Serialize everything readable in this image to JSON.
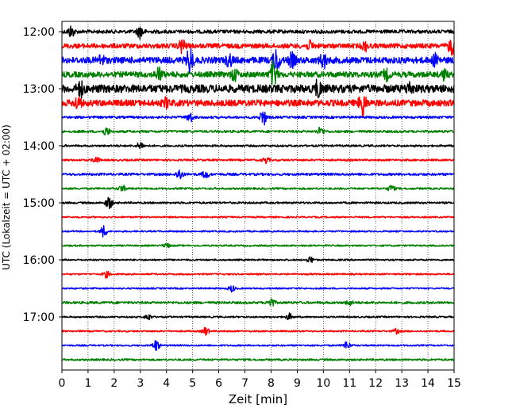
{
  "chart_data": {
    "type": "line",
    "xlabel": "Zeit  [min]",
    "ylabel": "UTC (Lokalzeit = UTC + 02:00)",
    "xlim": [
      0,
      15
    ],
    "x_ticks": [
      "0",
      "1",
      "2",
      "3",
      "4",
      "5",
      "6",
      "7",
      "8",
      "9",
      "10",
      "11",
      "12",
      "13",
      "14",
      "15"
    ],
    "y_ticks": [
      "12:00",
      "13:00",
      "14:00",
      "15:00",
      "16:00",
      "17:00"
    ],
    "grid": "vertical dotted at each minute",
    "series_colors": [
      "#000000",
      "#ff0000",
      "#0000ff",
      "#008000"
    ],
    "traces": [
      {
        "start": "12:00",
        "color": "#000000",
        "amp": 2.2,
        "events": [
          [
            0.35,
            7
          ],
          [
            3.0,
            8
          ]
        ]
      },
      {
        "start": "12:15",
        "color": "#ff0000",
        "amp": 3.0,
        "events": [
          [
            4.6,
            9
          ],
          [
            9.5,
            5
          ],
          [
            11.6,
            5
          ],
          [
            14.9,
            10
          ]
        ]
      },
      {
        "start": "12:30",
        "color": "#0000ff",
        "amp": 4.0,
        "events": [
          [
            1.5,
            6
          ],
          [
            4.9,
            15
          ],
          [
            6.4,
            7
          ],
          [
            8.2,
            14
          ],
          [
            8.8,
            8
          ],
          [
            10.0,
            9
          ],
          [
            14.3,
            7
          ]
        ]
      },
      {
        "start": "12:45",
        "color": "#008000",
        "amp": 3.5,
        "events": [
          [
            3.7,
            8
          ],
          [
            6.6,
            7
          ],
          [
            8.1,
            16
          ],
          [
            12.4,
            6
          ],
          [
            14.6,
            6
          ]
        ]
      },
      {
        "start": "13:00",
        "color": "#000000",
        "amp": 5.0,
        "events": [
          [
            0.7,
            8
          ],
          [
            9.8,
            10
          ],
          [
            13.3,
            6
          ]
        ]
      },
      {
        "start": "13:15",
        "color": "#ff0000",
        "amp": 4.0,
        "events": [
          [
            0.6,
            7
          ],
          [
            4.0,
            5
          ],
          [
            11.5,
            16
          ]
        ]
      },
      {
        "start": "13:30",
        "color": "#0000ff",
        "amp": 1.5,
        "events": [
          [
            4.9,
            6
          ],
          [
            7.7,
            10
          ]
        ]
      },
      {
        "start": "13:45",
        "color": "#008000",
        "amp": 1.5,
        "events": [
          [
            1.7,
            5
          ],
          [
            9.9,
            5
          ]
        ]
      },
      {
        "start": "14:00",
        "color": "#000000",
        "amp": 1.2,
        "events": [
          [
            3.0,
            5
          ]
        ]
      },
      {
        "start": "14:15",
        "color": "#ff0000",
        "amp": 1.2,
        "events": [
          [
            1.3,
            4
          ],
          [
            7.8,
            4
          ]
        ]
      },
      {
        "start": "14:30",
        "color": "#0000ff",
        "amp": 1.5,
        "events": [
          [
            4.5,
            7
          ],
          [
            5.5,
            5
          ]
        ]
      },
      {
        "start": "14:45",
        "color": "#008000",
        "amp": 1.2,
        "events": [
          [
            2.3,
            4
          ],
          [
            12.6,
            4
          ]
        ]
      },
      {
        "start": "15:00",
        "color": "#000000",
        "amp": 1.2,
        "events": [
          [
            1.8,
            8
          ]
        ]
      },
      {
        "start": "15:15",
        "color": "#ff0000",
        "amp": 1.0,
        "events": []
      },
      {
        "start": "15:30",
        "color": "#0000ff",
        "amp": 1.0,
        "events": [
          [
            1.6,
            7
          ]
        ]
      },
      {
        "start": "15:45",
        "color": "#008000",
        "amp": 1.0,
        "events": [
          [
            4.0,
            3
          ]
        ]
      },
      {
        "start": "16:00",
        "color": "#000000",
        "amp": 1.0,
        "events": [
          [
            9.5,
            4
          ]
        ]
      },
      {
        "start": "16:15",
        "color": "#ff0000",
        "amp": 1.0,
        "events": [
          [
            1.7,
            4
          ]
        ]
      },
      {
        "start": "16:30",
        "color": "#0000ff",
        "amp": 1.0,
        "events": [
          [
            6.5,
            4
          ]
        ]
      },
      {
        "start": "16:45",
        "color": "#008000",
        "amp": 1.5,
        "events": [
          [
            8.0,
            6
          ],
          [
            11.0,
            3
          ]
        ]
      },
      {
        "start": "17:00",
        "color": "#000000",
        "amp": 1.0,
        "events": [
          [
            3.3,
            4
          ],
          [
            8.7,
            4
          ]
        ]
      },
      {
        "start": "17:15",
        "color": "#ff0000",
        "amp": 1.0,
        "events": [
          [
            5.5,
            5
          ],
          [
            12.8,
            3
          ]
        ]
      },
      {
        "start": "17:30",
        "color": "#0000ff",
        "amp": 1.0,
        "events": [
          [
            3.6,
            7
          ],
          [
            10.9,
            5
          ]
        ]
      },
      {
        "start": "17:45",
        "color": "#008000",
        "amp": 1.2,
        "events": []
      }
    ]
  }
}
